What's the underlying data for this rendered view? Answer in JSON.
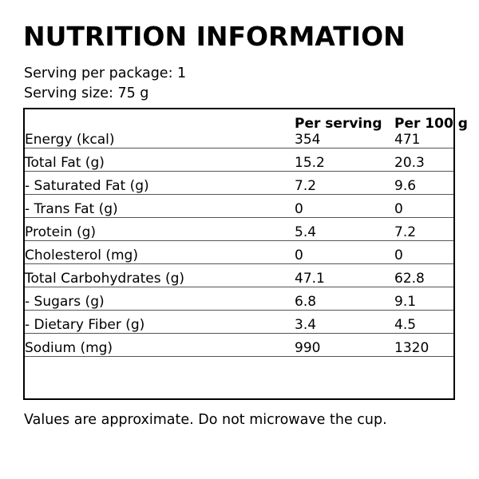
{
  "title": "NUTRITION INFORMATION",
  "serving_info": {
    "per_package": "Serving per package: 1",
    "size": "Serving size: 75 g"
  },
  "table": {
    "columns": {
      "label": "",
      "per_serving": "Per serving",
      "per_100g": "Per 100 g"
    },
    "rows": [
      {
        "label": "Energy (kcal)",
        "per_serving": "354",
        "per_100g": "471"
      },
      {
        "label": "Total Fat (g)",
        "per_serving": "15.2",
        "per_100g": "20.3"
      },
      {
        "label": "- Saturated Fat (g)",
        "per_serving": "7.2",
        "per_100g": "9.6"
      },
      {
        "label": "- Trans Fat (g)",
        "per_serving": "0",
        "per_100g": "0"
      },
      {
        "label": "Protein (g)",
        "per_serving": "5.4",
        "per_100g": "7.2"
      },
      {
        "label": "Cholesterol (mg)",
        "per_serving": "0",
        "per_100g": "0"
      },
      {
        "label": "Total Carbohydrates (g)",
        "per_serving": "47.1",
        "per_100g": "62.8"
      },
      {
        "label": "- Sugars (g)",
        "per_serving": "6.8",
        "per_100g": "9.1"
      },
      {
        "label": "- Dietary Fiber (g)",
        "per_serving": "3.4",
        "per_100g": "4.5"
      },
      {
        "label": "Sodium (mg)",
        "per_serving": "990",
        "per_100g": "1320"
      }
    ]
  },
  "footnote": "Values are approximate. Do not microwave the cup.",
  "colors": {
    "background": "#ffffff",
    "text": "#000000",
    "outer_border": "#000000",
    "row_line": "#555555"
  }
}
